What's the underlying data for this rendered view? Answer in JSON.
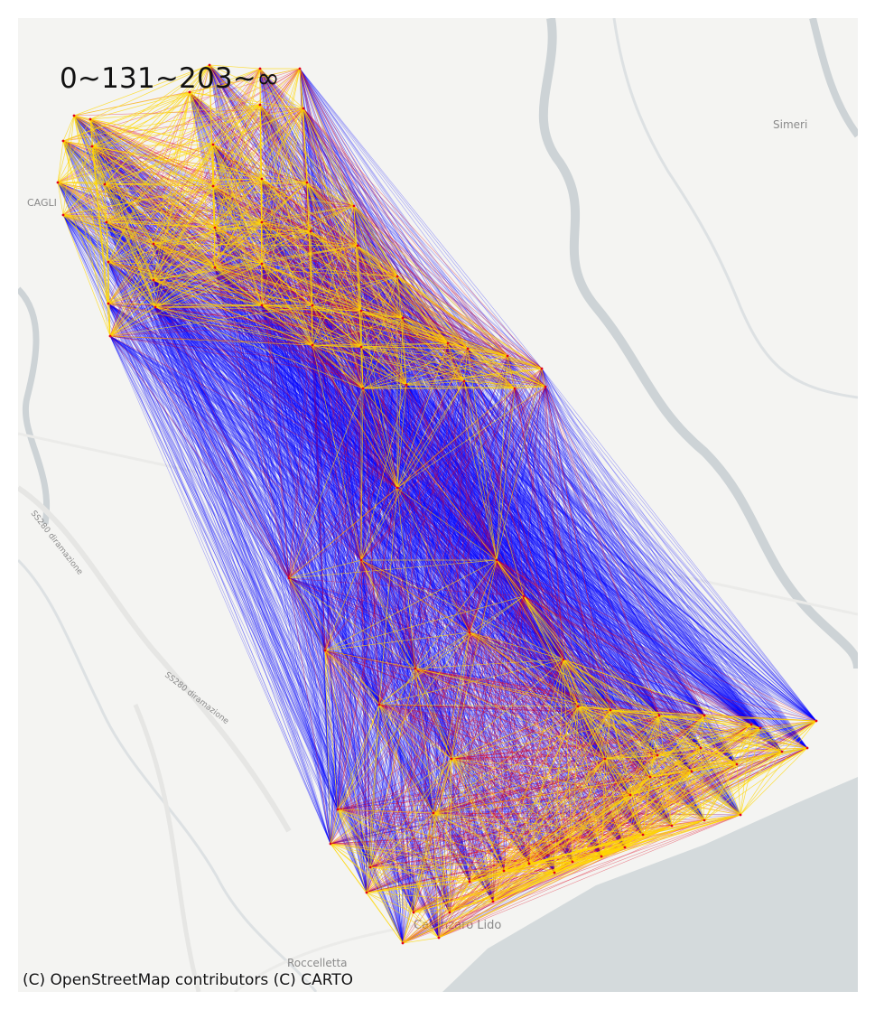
{
  "map": {
    "legend_label": "0~131~203~∞",
    "attribution": "(C) OpenStreetMap contributors (C) CARTO",
    "places": {
      "simeri": "Simeri",
      "gagliano": "CAGLI",
      "catanzaro_lido": "Catanzaro Lido",
      "roccelletta": "Roccelletta",
      "road_1": "SS280 diramazione",
      "road_2": "SS280 diramazione",
      "road_3": "SS280 diramazione"
    },
    "colors": {
      "background": "#f4f4f2",
      "sea": "#d4dadc",
      "river": "#cdd3d6",
      "road": "#e6e6e4",
      "band_low": "#0000ff",
      "band_mid": "#e0001b",
      "band_high": "#ffd700"
    },
    "distance_bands": [
      "0~131",
      "131~203",
      "203~∞"
    ]
  }
}
